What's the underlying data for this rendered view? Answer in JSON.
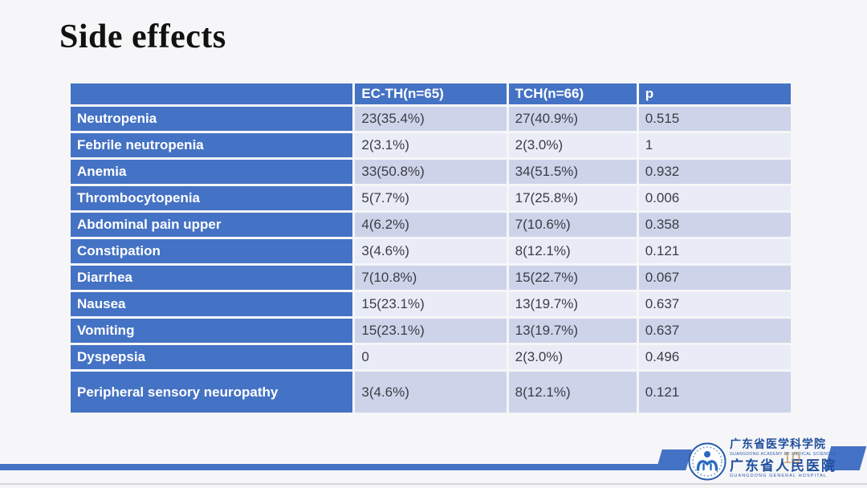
{
  "slide": {
    "title": "Side effects",
    "page_number": "10"
  },
  "table": {
    "columns": [
      "",
      "EC-TH(n=65)",
      "TCH(n=66)",
      "p"
    ],
    "rows": [
      {
        "label": "Neutropenia",
        "values": [
          "23(35.4%)",
          "27(40.9%)",
          "0.515"
        ]
      },
      {
        "label": "Febrile neutropenia",
        "values": [
          "2(3.1%)",
          "2(3.0%)",
          "1"
        ]
      },
      {
        "label": "Anemia",
        "values": [
          "33(50.8%)",
          "34(51.5%)",
          "0.932"
        ]
      },
      {
        "label": "Thrombocytopenia",
        "values": [
          "5(7.7%)",
          "17(25.8%)",
          "0.006"
        ]
      },
      {
        "label": "Abdominal pain upper",
        "values": [
          "4(6.2%)",
          "7(10.6%)",
          "0.358"
        ]
      },
      {
        "label": "Constipation",
        "values": [
          "3(4.6%)",
          "8(12.1%)",
          "0.121"
        ]
      },
      {
        "label": "Diarrhea",
        "values": [
          "7(10.8%)",
          "15(22.7%)",
          "0.067"
        ]
      },
      {
        "label": "Nausea",
        "values": [
          "15(23.1%)",
          "13(19.7%)",
          "0.637"
        ]
      },
      {
        "label": "Vomiting",
        "values": [
          "15(23.1%)",
          "13(19.7%)",
          "0.637"
        ]
      },
      {
        "label": "Dyspepsia",
        "values": [
          "0",
          "2(3.0%)",
          "0.496"
        ]
      },
      {
        "label": "Peripheral sensory neuropathy",
        "values": [
          "3(4.6%)",
          "8(12.1%)",
          "0.121"
        ]
      }
    ]
  },
  "footer": {
    "org_cn_1": "广东省医学科学院",
    "org_en_1": "GUANGDONG ACADEMY OF MEDICAL SCIENCES",
    "org_cn_2": "广东省人民医院",
    "org_en_2": "GUANGDONG GENERAL HOSPITAL"
  },
  "colors": {
    "accent_blue": "#4472C4",
    "band_dark": "#CDD4EA",
    "band_light": "#E9ECF6",
    "logo_blue": "#1F4E9D",
    "page_number_color": "#B98A4E"
  }
}
